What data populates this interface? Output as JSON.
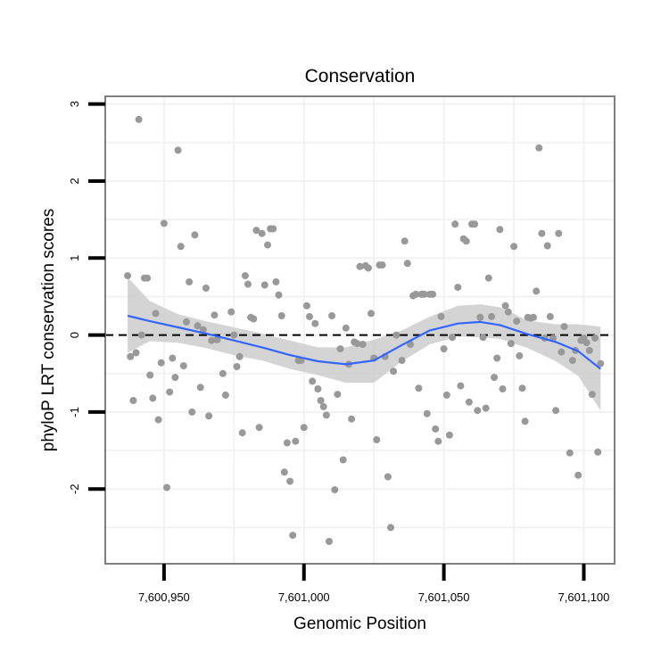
{
  "chart_data": {
    "type": "scatter",
    "title": "Conservation",
    "xlabel": "Genomic Position",
    "ylabel": "phyloP LRT conservation scores",
    "xlim": [
      7600929,
      7601111
    ],
    "ylim": [
      -2.97,
      3.1
    ],
    "x_ticks": [
      7600950,
      7601000,
      7601050,
      7601100
    ],
    "x_tick_labels": [
      "7,600,950",
      "7,601,000",
      "7,601,050",
      "7,601,100"
    ],
    "y_ticks": [
      -2,
      -1,
      0,
      1,
      2,
      3
    ],
    "y_tick_labels": [
      "-2",
      "-1",
      "0",
      "1",
      "2",
      "3"
    ],
    "grid": true,
    "reference_line": {
      "y": 0,
      "style": "dashed"
    },
    "colors": {
      "points": "#999999",
      "smooth_line": "#3366ff",
      "confidence_band": "#cccccc",
      "grid": "#f2f2f2",
      "panel_border": "#7f7f7f"
    },
    "points": [
      {
        "x": 7600937,
        "y": 0.77
      },
      {
        "x": 7600938,
        "y": -0.28
      },
      {
        "x": 7600939,
        "y": -0.85
      },
      {
        "x": 7600940,
        "y": -0.23
      },
      {
        "x": 7600941,
        "y": 2.8
      },
      {
        "x": 7600942,
        "y": 0.0
      },
      {
        "x": 7600943,
        "y": 0.74
      },
      {
        "x": 7600944,
        "y": 0.74
      },
      {
        "x": 7600945,
        "y": -0.52
      },
      {
        "x": 7600946,
        "y": -0.82
      },
      {
        "x": 7600947,
        "y": 0.28
      },
      {
        "x": 7600948,
        "y": -1.1
      },
      {
        "x": 7600949,
        "y": -0.36
      },
      {
        "x": 7600950,
        "y": 1.45
      },
      {
        "x": 7600951,
        "y": -1.98
      },
      {
        "x": 7600952,
        "y": -0.74
      },
      {
        "x": 7600953,
        "y": -0.3
      },
      {
        "x": 7600954,
        "y": -0.55
      },
      {
        "x": 7600955,
        "y": 2.4
      },
      {
        "x": 7600956,
        "y": 1.15
      },
      {
        "x": 7600957,
        "y": -0.4
      },
      {
        "x": 7600958,
        "y": 0.17
      },
      {
        "x": 7600959,
        "y": 0.69
      },
      {
        "x": 7600960,
        "y": -1.0
      },
      {
        "x": 7600961,
        "y": 1.3
      },
      {
        "x": 7600962,
        "y": 0.12
      },
      {
        "x": 7600963,
        "y": -0.68
      },
      {
        "x": 7600964,
        "y": 0.07
      },
      {
        "x": 7600965,
        "y": 0.61
      },
      {
        "x": 7600966,
        "y": -1.05
      },
      {
        "x": 7600967,
        "y": -0.07
      },
      {
        "x": 7600968,
        "y": 0.26
      },
      {
        "x": 7600969,
        "y": -0.06
      },
      {
        "x": 7600971,
        "y": -0.5
      },
      {
        "x": 7600972,
        "y": -0.78
      },
      {
        "x": 7600974,
        "y": 0.3
      },
      {
        "x": 7600975,
        "y": 0.0
      },
      {
        "x": 7600976,
        "y": -0.41
      },
      {
        "x": 7600977,
        "y": -0.28
      },
      {
        "x": 7600978,
        "y": -1.27
      },
      {
        "x": 7600979,
        "y": 0.77
      },
      {
        "x": 7600980,
        "y": 0.66
      },
      {
        "x": 7600981,
        "y": 0.23
      },
      {
        "x": 7600982,
        "y": 0.21
      },
      {
        "x": 7600983,
        "y": 1.36
      },
      {
        "x": 7600984,
        "y": -1.2
      },
      {
        "x": 7600985,
        "y": 1.32
      },
      {
        "x": 7600986,
        "y": 0.65
      },
      {
        "x": 7600987,
        "y": 1.17
      },
      {
        "x": 7600988,
        "y": 1.38
      },
      {
        "x": 7600989,
        "y": 1.38
      },
      {
        "x": 7600990,
        "y": 0.69
      },
      {
        "x": 7600991,
        "y": 0.52
      },
      {
        "x": 7600992,
        "y": 0.25
      },
      {
        "x": 7600993,
        "y": -1.78
      },
      {
        "x": 7600994,
        "y": -1.4
      },
      {
        "x": 7600995,
        "y": -1.9
      },
      {
        "x": 7600996,
        "y": -2.6
      },
      {
        "x": 7600997,
        "y": -1.38
      },
      {
        "x": 7600998,
        "y": -0.33
      },
      {
        "x": 7600999,
        "y": -0.33
      },
      {
        "x": 7601000,
        "y": -1.2
      },
      {
        "x": 7601001,
        "y": 0.38
      },
      {
        "x": 7601002,
        "y": 0.24
      },
      {
        "x": 7601003,
        "y": -0.6
      },
      {
        "x": 7601004,
        "y": 0.15
      },
      {
        "x": 7601005,
        "y": -0.7
      },
      {
        "x": 7601006,
        "y": -0.85
      },
      {
        "x": 7601007,
        "y": -0.93
      },
      {
        "x": 7601008,
        "y": -1.04
      },
      {
        "x": 7601009,
        "y": -2.68
      },
      {
        "x": 7601010,
        "y": 0.25
      },
      {
        "x": 7601011,
        "y": -2.01
      },
      {
        "x": 7601012,
        "y": -0.77
      },
      {
        "x": 7601013,
        "y": -0.18
      },
      {
        "x": 7601014,
        "y": -1.62
      },
      {
        "x": 7601015,
        "y": 0.09
      },
      {
        "x": 7601016,
        "y": -0.38
      },
      {
        "x": 7601017,
        "y": -1.09
      },
      {
        "x": 7601018,
        "y": -0.09
      },
      {
        "x": 7601019,
        "y": -0.11
      },
      {
        "x": 7601020,
        "y": 0.89
      },
      {
        "x": 7601021,
        "y": -0.12
      },
      {
        "x": 7601022,
        "y": 0.9
      },
      {
        "x": 7601023,
        "y": 0.87
      },
      {
        "x": 7601024,
        "y": 0.28
      },
      {
        "x": 7601025,
        "y": -0.3
      },
      {
        "x": 7601026,
        "y": -1.36
      },
      {
        "x": 7601027,
        "y": 0.91
      },
      {
        "x": 7601028,
        "y": 0.91
      },
      {
        "x": 7601029,
        "y": -0.28
      },
      {
        "x": 7601030,
        "y": -1.84
      },
      {
        "x": 7601031,
        "y": -2.5
      },
      {
        "x": 7601032,
        "y": -0.47
      },
      {
        "x": 7601033,
        "y": 0.0
      },
      {
        "x": 7601035,
        "y": -0.33
      },
      {
        "x": 7601036,
        "y": 1.22
      },
      {
        "x": 7601037,
        "y": 0.93
      },
      {
        "x": 7601038,
        "y": -0.12
      },
      {
        "x": 7601039,
        "y": 0.51
      },
      {
        "x": 7601040,
        "y": 0.53
      },
      {
        "x": 7601041,
        "y": -0.69
      },
      {
        "x": 7601042,
        "y": 0.53
      },
      {
        "x": 7601043,
        "y": 0.53
      },
      {
        "x": 7601044,
        "y": -1.02
      },
      {
        "x": 7601045,
        "y": 0.53
      },
      {
        "x": 7601046,
        "y": 0.53
      },
      {
        "x": 7601047,
        "y": -1.22
      },
      {
        "x": 7601048,
        "y": -1.38
      },
      {
        "x": 7601049,
        "y": 0.24
      },
      {
        "x": 7601050,
        "y": -0.18
      },
      {
        "x": 7601051,
        "y": -0.78
      },
      {
        "x": 7601052,
        "y": -1.3
      },
      {
        "x": 7601053,
        "y": -0.03
      },
      {
        "x": 7601054,
        "y": 1.44
      },
      {
        "x": 7601055,
        "y": 0.62
      },
      {
        "x": 7601056,
        "y": -0.66
      },
      {
        "x": 7601057,
        "y": 1.25
      },
      {
        "x": 7601058,
        "y": 1.22
      },
      {
        "x": 7601059,
        "y": -0.87
      },
      {
        "x": 7601060,
        "y": 1.44
      },
      {
        "x": 7601061,
        "y": 1.44
      },
      {
        "x": 7601062,
        "y": -0.98
      },
      {
        "x": 7601063,
        "y": 0.23
      },
      {
        "x": 7601064,
        "y": -0.03
      },
      {
        "x": 7601065,
        "y": -0.95
      },
      {
        "x": 7601066,
        "y": 0.74
      },
      {
        "x": 7601067,
        "y": 0.24
      },
      {
        "x": 7601068,
        "y": -0.55
      },
      {
        "x": 7601069,
        "y": -0.3
      },
      {
        "x": 7601070,
        "y": 1.37
      },
      {
        "x": 7601071,
        "y": -0.7
      },
      {
        "x": 7601072,
        "y": 0.38
      },
      {
        "x": 7601073,
        "y": 0.3
      },
      {
        "x": 7601074,
        "y": -0.11
      },
      {
        "x": 7601075,
        "y": 1.15
      },
      {
        "x": 7601076,
        "y": 0.18
      },
      {
        "x": 7601077,
        "y": -0.27
      },
      {
        "x": 7601078,
        "y": -0.69
      },
      {
        "x": 7601079,
        "y": -1.12
      },
      {
        "x": 7601080,
        "y": 0.23
      },
      {
        "x": 7601081,
        "y": 0.22
      },
      {
        "x": 7601082,
        "y": 0.23
      },
      {
        "x": 7601083,
        "y": 0.57
      },
      {
        "x": 7601084,
        "y": 2.43
      },
      {
        "x": 7601085,
        "y": 1.32
      },
      {
        "x": 7601086,
        "y": -0.04
      },
      {
        "x": 7601087,
        "y": 1.16
      },
      {
        "x": 7601088,
        "y": 0.24
      },
      {
        "x": 7601089,
        "y": -0.04
      },
      {
        "x": 7601090,
        "y": -0.98
      },
      {
        "x": 7601091,
        "y": 1.32
      },
      {
        "x": 7601092,
        "y": -0.22
      },
      {
        "x": 7601093,
        "y": 0.11
      },
      {
        "x": 7601095,
        "y": -1.53
      },
      {
        "x": 7601096,
        "y": -0.33
      },
      {
        "x": 7601097,
        "y": -0.2
      },
      {
        "x": 7601098,
        "y": -1.82
      },
      {
        "x": 7601099,
        "y": -0.07
      },
      {
        "x": 7601100,
        "y": -0.04
      },
      {
        "x": 7601101,
        "y": -0.1
      },
      {
        "x": 7601102,
        "y": -0.2
      },
      {
        "x": 7601103,
        "y": -0.77
      },
      {
        "x": 7601104,
        "y": -0.04
      },
      {
        "x": 7601105,
        "y": -1.52
      },
      {
        "x": 7601106,
        "y": -0.37
      }
    ],
    "smooth_fit": {
      "x": [
        7600937,
        7600945,
        7600955,
        7600965,
        7600975,
        7600985,
        7600995,
        7601005,
        7601015,
        7601025,
        7601035,
        7601045,
        7601055,
        7601063,
        7601070,
        7601080,
        7601090,
        7601098,
        7601106
      ],
      "y": [
        0.25,
        0.18,
        0.1,
        0.02,
        -0.07,
        -0.16,
        -0.26,
        -0.34,
        -0.38,
        -0.33,
        -0.13,
        0.06,
        0.15,
        0.17,
        0.13,
        0.01,
        -0.09,
        -0.21,
        -0.44
      ],
      "lower": [
        -0.23,
        -0.08,
        -0.1,
        -0.17,
        -0.26,
        -0.33,
        -0.44,
        -0.52,
        -0.62,
        -0.62,
        -0.34,
        -0.12,
        -0.02,
        -0.03,
        -0.05,
        -0.17,
        -0.34,
        -0.53,
        -0.98
      ],
      "upper": [
        0.75,
        0.44,
        0.27,
        0.18,
        0.1,
        0.02,
        -0.07,
        -0.16,
        -0.16,
        -0.06,
        0.06,
        0.24,
        0.38,
        0.4,
        0.36,
        0.19,
        0.14,
        0.14,
        0.11
      ]
    }
  }
}
